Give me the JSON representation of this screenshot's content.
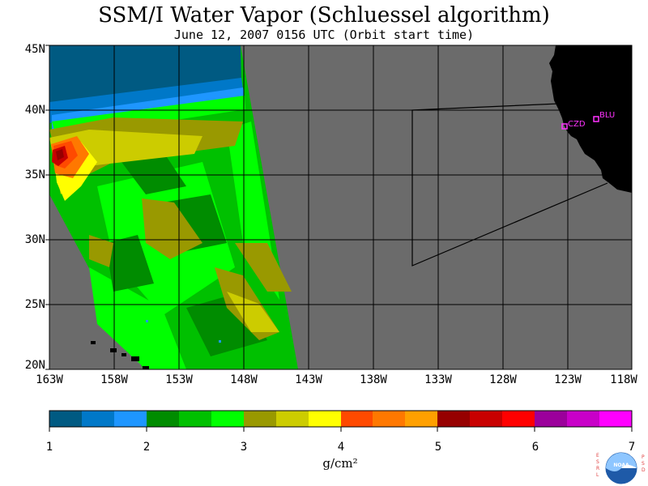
{
  "header": {
    "title": "SSM/I Water Vapor (Schluessel algorithm)",
    "subtitle": "June 12, 2007  0156 UTC  (Orbit start time)"
  },
  "map": {
    "lat_labels": [
      "45N",
      "40N",
      "35N",
      "30N",
      "25N",
      "20N"
    ],
    "lon_labels": [
      "163W",
      "158W",
      "153W",
      "148W",
      "143W",
      "138W",
      "133W",
      "128W",
      "123W",
      "118W"
    ],
    "stations": [
      {
        "id": "CZD",
        "label": "CZD"
      },
      {
        "id": "BLU",
        "label": "BLU"
      }
    ],
    "colors": {
      "nodata": "#6b6b6b",
      "land": "#000000",
      "grid": "#000000",
      "station": "#ff33ff"
    }
  },
  "colorbar": {
    "tick_labels": [
      "1",
      "2",
      "3",
      "4",
      "5",
      "6",
      "7"
    ],
    "unit": "g/cm²",
    "colors": [
      "#005a82",
      "#0078c8",
      "#1e96ff",
      "#008c00",
      "#00c000",
      "#00ff00",
      "#999900",
      "#cccc00",
      "#ffff00",
      "#ff4a00",
      "#ff7800",
      "#ffa000",
      "#960000",
      "#c80000",
      "#ff0000",
      "#9b009b",
      "#c800c8",
      "#ff00ff"
    ]
  },
  "logo": {
    "left_text": "ESRL",
    "right_text": "PSD",
    "center_text": "NOAA"
  }
}
